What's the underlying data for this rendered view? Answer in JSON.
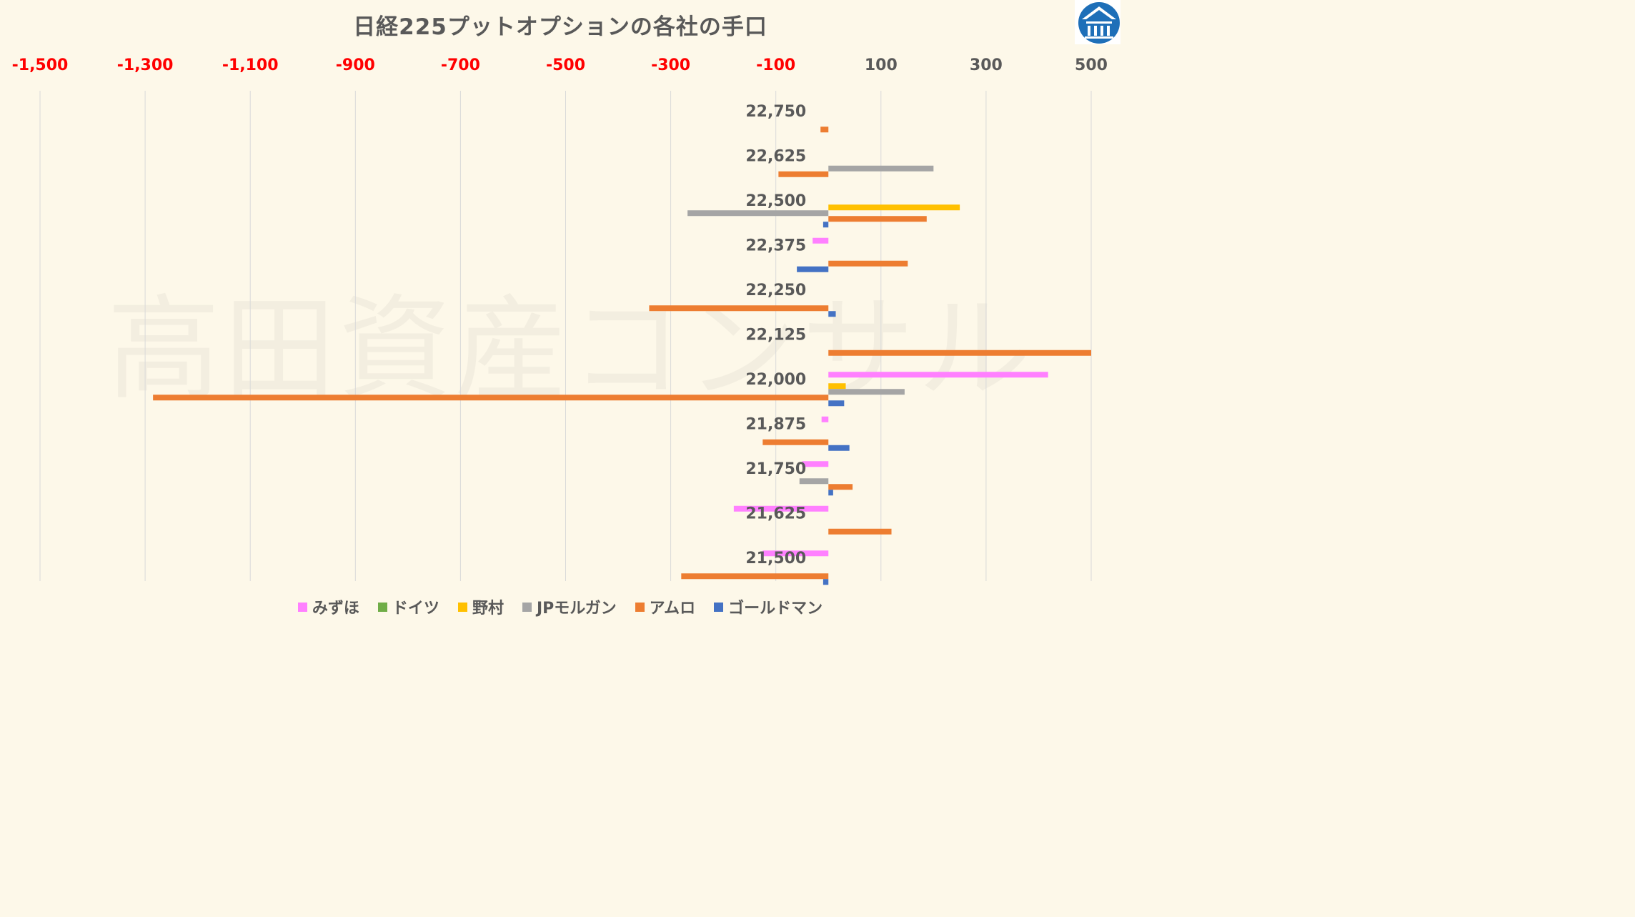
{
  "chart_data": {
    "type": "bar",
    "orientation": "horizontal",
    "title": "日経225プットオプションの各社の手口",
    "xlim": [
      -1500,
      500
    ],
    "xticks": [
      -1500,
      -1300,
      -1100,
      -900,
      -700,
      -500,
      -300,
      -100,
      100,
      300,
      500
    ],
    "xtick_labels": [
      "-1,500",
      "-1,300",
      "-1,100",
      "-900",
      "-700",
      "-500",
      "-300",
      "-100",
      "100",
      "300",
      "500"
    ],
    "negative_tick_color": "#ff0000",
    "positive_tick_color": "#595959",
    "grid": true,
    "legend_position": "bottom",
    "categories": [
      "22,750",
      "22,625",
      "22,500",
      "22,375",
      "22,250",
      "22,125",
      "22,000",
      "21,875",
      "21,750",
      "21,625",
      "21,500"
    ],
    "series": [
      {
        "name": "みずほ",
        "color": "#ff80ff",
        "values": [
          0,
          0,
          0,
          -30,
          0,
          0,
          418,
          -13,
          -50,
          -180,
          -125
        ]
      },
      {
        "name": "ドイツ",
        "color": "#70ad47",
        "values": [
          0,
          0,
          0,
          0,
          0,
          0,
          0,
          0,
          0,
          0,
          0
        ]
      },
      {
        "name": "野村",
        "color": "#ffc000",
        "values": [
          0,
          0,
          250,
          0,
          0,
          0,
          33,
          0,
          0,
          0,
          0
        ]
      },
      {
        "name": "JPモルガン",
        "color": "#a5a5a5",
        "values": [
          0,
          200,
          -268,
          0,
          0,
          0,
          145,
          0,
          -55,
          0,
          0
        ]
      },
      {
        "name": "アムロ",
        "color": "#ed7d31",
        "values": [
          -15,
          -95,
          187,
          151,
          -341,
          500,
          -1285,
          -125,
          46,
          120,
          -280
        ]
      },
      {
        "name": "ゴールドマン",
        "color": "#4472c4",
        "values": [
          0,
          0,
          -10,
          -60,
          14,
          0,
          30,
          40,
          9,
          0,
          -10
        ]
      }
    ]
  },
  "watermark": "高田資産コンサル",
  "logo_icon": "building-logo-icon"
}
